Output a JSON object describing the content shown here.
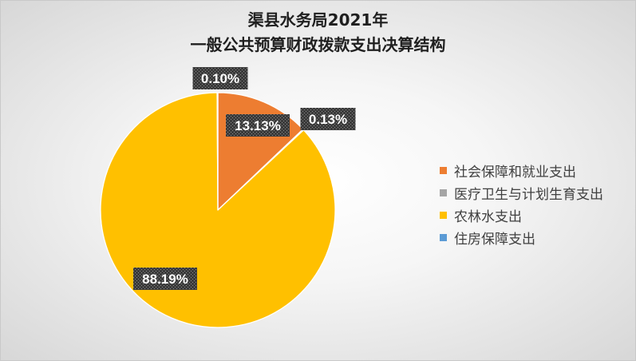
{
  "chart_data": {
    "type": "pie",
    "title_lines": [
      "渠县水务局2021年",
      "一般公共预算财政拨款支出决算结构"
    ],
    "categories": [
      "社会保障和就业支出",
      "医疗卫生与计划生育支出",
      "农林水支出",
      "住房保障支出"
    ],
    "values": [
      13.13,
      0.13,
      88.19,
      0.1
    ],
    "data_labels": [
      "13.13%",
      "0.13%",
      "88.19%",
      "0.10%"
    ],
    "colors": [
      "#ED7D31",
      "#A5A5A5",
      "#FFC000",
      "#5B9BD5"
    ],
    "legend": "right"
  }
}
